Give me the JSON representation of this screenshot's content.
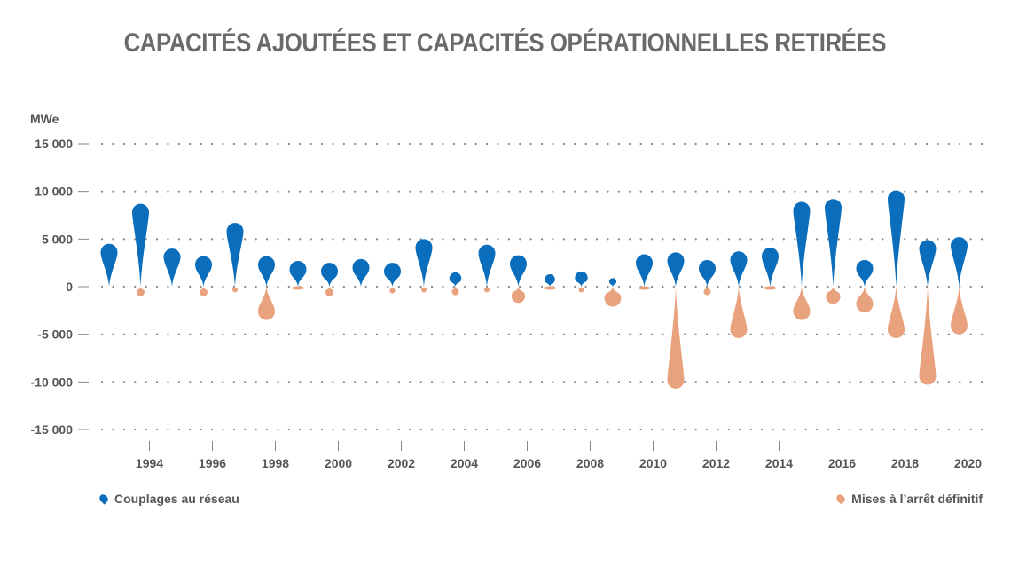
{
  "chart_data": {
    "type": "bar",
    "title": "CAPACITÉS AJOUTÉES ET CAPACITÉS OPÉRATIONNELLES RETIRÉES",
    "ylabel": "MWe",
    "xlabel": "",
    "ylim": [
      -15000,
      15000
    ],
    "yticks": [
      15000,
      10000,
      5000,
      0,
      -5000,
      -10000,
      -15000
    ],
    "ytick_labels": [
      "15 000",
      "10 000",
      "5 000",
      "0",
      "-5 000",
      "-10 000",
      "-15 000"
    ],
    "x": [
      1993,
      1994,
      1995,
      1996,
      1997,
      1998,
      1999,
      2000,
      2001,
      2002,
      2003,
      2004,
      2005,
      2006,
      2007,
      2008,
      2009,
      2010,
      2011,
      2012,
      2013,
      2014,
      2015,
      2016,
      2017,
      2018,
      2019,
      2020
    ],
    "xtick_labels": [
      "1994",
      "1996",
      "1998",
      "2000",
      "2002",
      "2004",
      "2006",
      "2008",
      "2010",
      "2012",
      "2014",
      "2016",
      "2018",
      "2020"
    ],
    "grid": true,
    "legend_position": "bottom",
    "series": [
      {
        "name": "Couplages au réseau",
        "color": "#0a6ebd",
        "values": [
          4500,
          8700,
          4000,
          3200,
          6700,
          3200,
          2700,
          2500,
          2900,
          2500,
          5000,
          1500,
          4400,
          3300,
          1300,
          1600,
          900,
          3400,
          3600,
          2800,
          3700,
          4100,
          8900,
          9200,
          2800,
          10100,
          4900,
          5200
        ]
      },
      {
        "name": "Mises à l’arrêt définitif",
        "color": "#e8a27d",
        "values": [
          0,
          -1000,
          0,
          -1000,
          -600,
          -3500,
          -300,
          -1000,
          0,
          -700,
          -600,
          -900,
          -600,
          -1700,
          -300,
          -600,
          -2100,
          -200,
          -10700,
          -900,
          -5400,
          -300,
          -3500,
          -1800,
          -2700,
          -5400,
          -10300,
          -5000
        ]
      }
    ]
  }
}
